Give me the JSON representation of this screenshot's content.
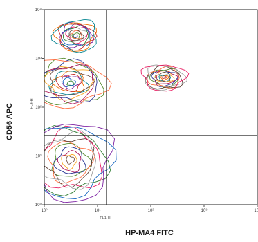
{
  "chart_data": {
    "type": "contour",
    "title": "",
    "xlabel": "HP-MA4 FITC",
    "ylabel": "CD56 APC",
    "inner_xlabel": "FL1-H",
    "inner_ylabel": "FL4-H",
    "x_scale": "log",
    "y_scale": "log",
    "xlim": [
      1,
      10000
    ],
    "ylim": [
      1,
      10000
    ],
    "x_ticks": [
      "10⁰",
      "10¹",
      "10²",
      "10³",
      "10⁴"
    ],
    "y_ticks": [
      "10⁰",
      "10¹",
      "10²",
      "10³",
      "10⁴"
    ],
    "gates": {
      "x_threshold": 14,
      "y_threshold": 40
    },
    "populations": [
      {
        "name": "",
        "center": [
          3,
          320
        ],
        "spread": [
          0.25,
          0.18
        ]
      },
      {
        "name": "",
        "center": [
          180,
          400
        ],
        "spread": [
          0.15,
          0.1
        ]
      },
      {
        "name": "",
        "center": [
          3,
          8
        ],
        "spread": [
          0.3,
          0.3
        ]
      },
      {
        "name": "",
        "center": [
          4,
          3000
        ],
        "spread": [
          0.15,
          0.12
        ]
      }
    ],
    "contour_colors": [
      "#2e7d32",
      "#1565c0",
      "#7b1fa2",
      "#c62828",
      "#ef6c00",
      "#00838f",
      "#6d4c41",
      "#f9a825",
      "#ad1457",
      "#283593",
      "#558b2f",
      "#ff7043",
      "#5d4037",
      "#9e9e9e",
      "#e91e63"
    ],
    "grid": false
  }
}
